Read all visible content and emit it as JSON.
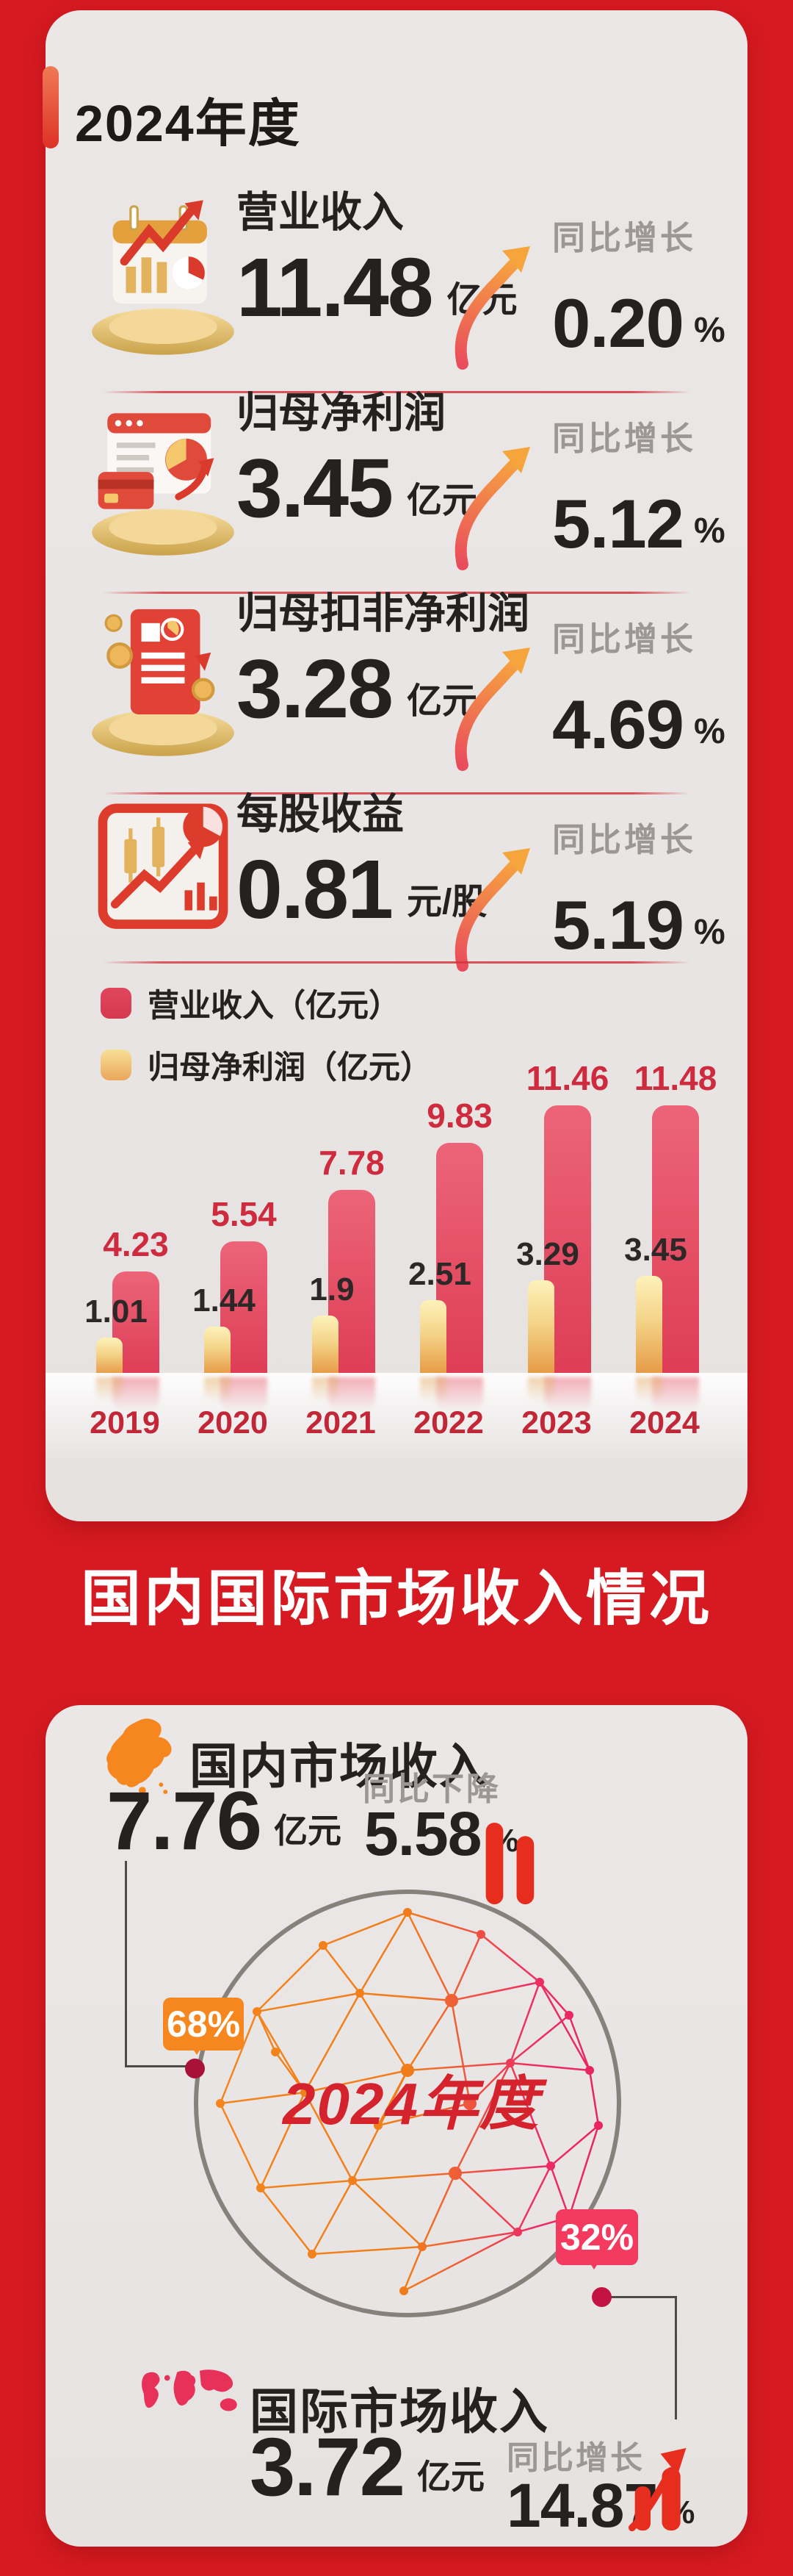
{
  "year_title": "2024年度",
  "metrics": [
    {
      "label": "营业收入",
      "value": "11.48",
      "unit": "亿元",
      "growth_label": "同比增长",
      "growth_value": "0.20",
      "growth_unit": "%",
      "icon": "calendar-chart-icon"
    },
    {
      "label": "归母净利润",
      "value": "3.45",
      "unit": "亿元",
      "growth_label": "同比增长",
      "growth_value": "5.12",
      "growth_unit": "%",
      "icon": "report-pie-icon"
    },
    {
      "label": "归母扣非净利润",
      "value": "3.28",
      "unit": "亿元",
      "growth_label": "同比增长",
      "growth_value": "4.69",
      "growth_unit": "%",
      "icon": "receipt-coins-icon"
    },
    {
      "label": "每股收益",
      "value": "0.81",
      "unit": "元/股",
      "growth_label": "同比增长",
      "growth_value": "5.19",
      "growth_unit": "%",
      "icon": "stock-chart-icon"
    }
  ],
  "chart_data": {
    "type": "bar",
    "categories": [
      "2019",
      "2020",
      "2021",
      "2022",
      "2023",
      "2024"
    ],
    "series": [
      {
        "name": "营业收入（亿元）",
        "values": [
          4.23,
          5.54,
          7.78,
          9.83,
          11.46,
          11.48
        ],
        "color": "#de3d56"
      },
      {
        "name": "归母净利润（亿元）",
        "values": [
          1.01,
          1.44,
          1.9,
          2.51,
          3.29,
          3.45
        ],
        "color": "#e69a45"
      }
    ],
    "title": "",
    "xlabel": "",
    "ylabel": "",
    "ylim": [
      0,
      12
    ],
    "grid": false,
    "legend_position": "top-left",
    "value_labels": true
  },
  "section_title": "国内国际市场收入情况",
  "market": {
    "year_label": "2024年度",
    "domestic": {
      "label": "国内市场收入",
      "value": "7.76",
      "unit": "亿元",
      "change_label": "同比下降",
      "change_value": "5.58",
      "change_unit": "%",
      "share": "68%",
      "icon": "china-map-icon"
    },
    "international": {
      "label": "国际市场收入",
      "value": "3.72",
      "unit": "亿元",
      "change_label": "同比增长",
      "change_value": "14.87",
      "change_unit": "%",
      "share": "32%",
      "icon": "world-map-icon"
    }
  },
  "colors": {
    "background_red": "#d71a21",
    "card_gray": "#e8e5e4",
    "bar_revenue": "#de3d56",
    "bar_profit": "#e69a45",
    "value_label_revenue": "#cf2b3f",
    "value_label_profit": "#2b2827",
    "year_label": "#c22737",
    "badge_domestic": "#f6871f",
    "badge_international": "#f43a5e",
    "icon_red": "#e62d1e",
    "globe_text": "#d4232c"
  }
}
